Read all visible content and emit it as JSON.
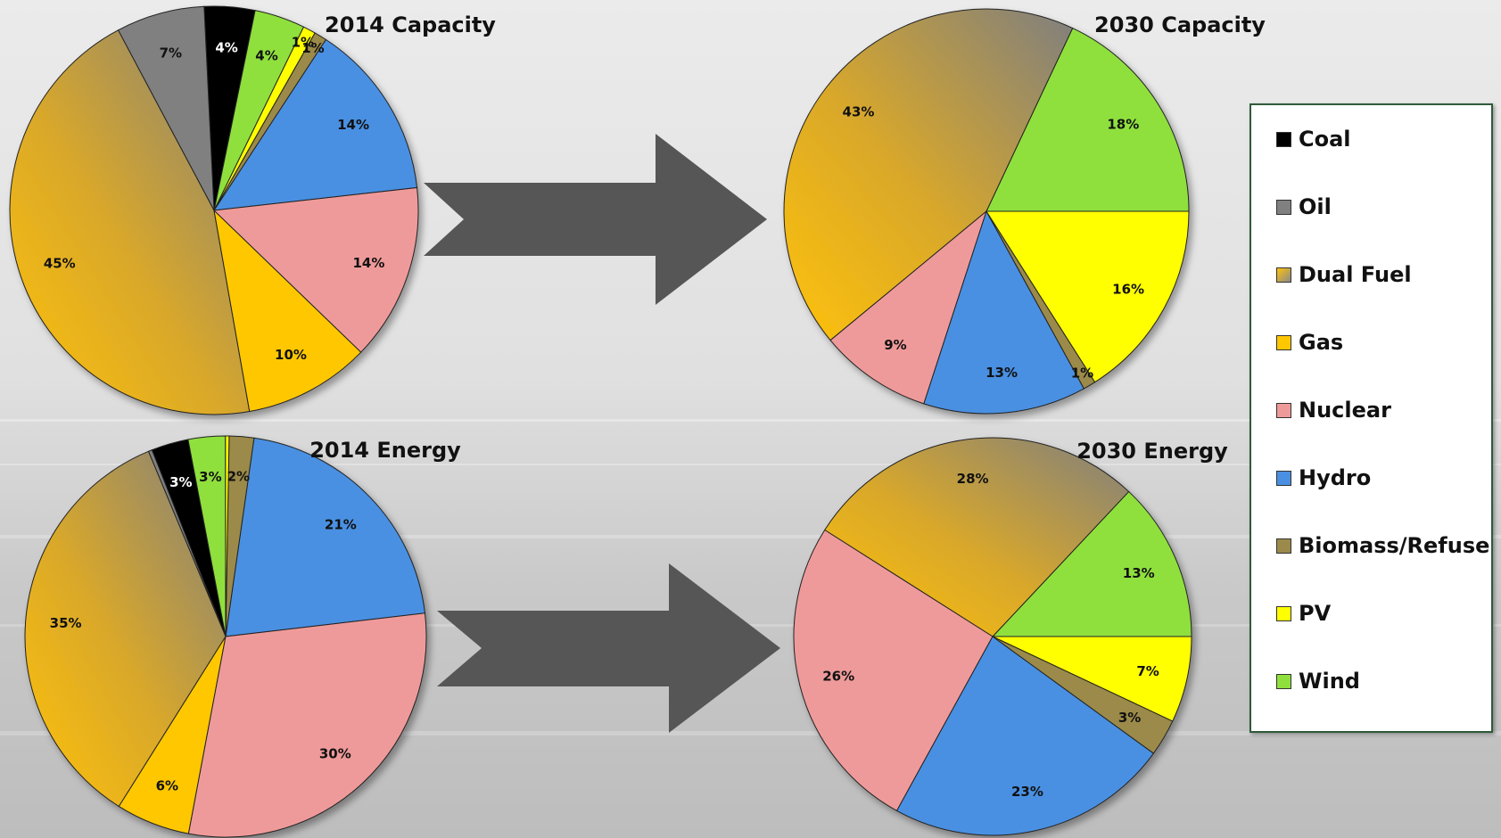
{
  "colors": {
    "Coal": "#000000",
    "Oil": "#808080",
    "Dual Fuel": "gradient-gold-to-gray",
    "Gas": "#ffc700",
    "Nuclear": "#ef9a9a",
    "Hydro": "#4a90e2",
    "Biomass/Refuse": "#9b8a4a",
    "PV": "#ffff00",
    "Wind": "#8fe03c"
  },
  "legend": {
    "items": [
      "Coal",
      "Oil",
      "Dual Fuel",
      "Gas",
      "Nuclear",
      "Hydro",
      "Biomass/Refuse",
      "PV",
      "Wind"
    ]
  },
  "chart_data": [
    {
      "type": "pie",
      "title": "2014 Capacity",
      "slices": [
        {
          "label": "Hydro",
          "value": 14,
          "text": "14%"
        },
        {
          "label": "Biomass/Refuse",
          "value": 1,
          "text": "1%"
        },
        {
          "label": "PV",
          "value": 1,
          "text": "1%"
        },
        {
          "label": "Wind",
          "value": 4,
          "text": "4%"
        },
        {
          "label": "Coal",
          "value": 4,
          "text": "4%"
        },
        {
          "label": "Oil",
          "value": 7,
          "text": "7%"
        },
        {
          "label": "Dual Fuel",
          "value": 45,
          "text": "45%"
        },
        {
          "label": "Gas",
          "value": 10,
          "text": "10%"
        },
        {
          "label": "Nuclear",
          "value": 14,
          "text": "14%"
        }
      ]
    },
    {
      "type": "pie",
      "title": "2030 Capacity",
      "slices": [
        {
          "label": "Wind",
          "value": 18,
          "text": "18%"
        },
        {
          "label": "Dual Fuel",
          "value": 43,
          "text": "43%"
        },
        {
          "label": "Nuclear",
          "value": 9,
          "text": "9%"
        },
        {
          "label": "Hydro",
          "value": 13,
          "text": "13%"
        },
        {
          "label": "Biomass/Refuse",
          "value": 1,
          "text": "1%"
        },
        {
          "label": "PV",
          "value": 16,
          "text": "16%"
        }
      ]
    },
    {
      "type": "pie",
      "title": "2014 Energy",
      "slices": [
        {
          "label": "Hydro",
          "value": 21,
          "text": "21%"
        },
        {
          "label": "Biomass/Refuse",
          "value": 2,
          "text": "2%"
        },
        {
          "label": "PV",
          "value": 0.3,
          "text": ""
        },
        {
          "label": "Wind",
          "value": 3,
          "text": "3%"
        },
        {
          "label": "Coal",
          "value": 3,
          "text": "3%"
        },
        {
          "label": "Oil",
          "value": 0.3,
          "text": ""
        },
        {
          "label": "Dual Fuel",
          "value": 35,
          "text": "35%"
        },
        {
          "label": "Gas",
          "value": 6,
          "text": "6%"
        },
        {
          "label": "Nuclear",
          "value": 30,
          "text": "30%"
        }
      ]
    },
    {
      "type": "pie",
      "title": "2030 Energy",
      "slices": [
        {
          "label": "Wind",
          "value": 13,
          "text": "13%"
        },
        {
          "label": "Dual Fuel",
          "value": 28,
          "text": "28%"
        },
        {
          "label": "Nuclear",
          "value": 26,
          "text": "26%"
        },
        {
          "label": "Hydro",
          "value": 23,
          "text": "23%"
        },
        {
          "label": "Biomass/Refuse",
          "value": 3,
          "text": "3%"
        },
        {
          "label": "PV",
          "value": 7,
          "text": "7%"
        }
      ]
    }
  ]
}
